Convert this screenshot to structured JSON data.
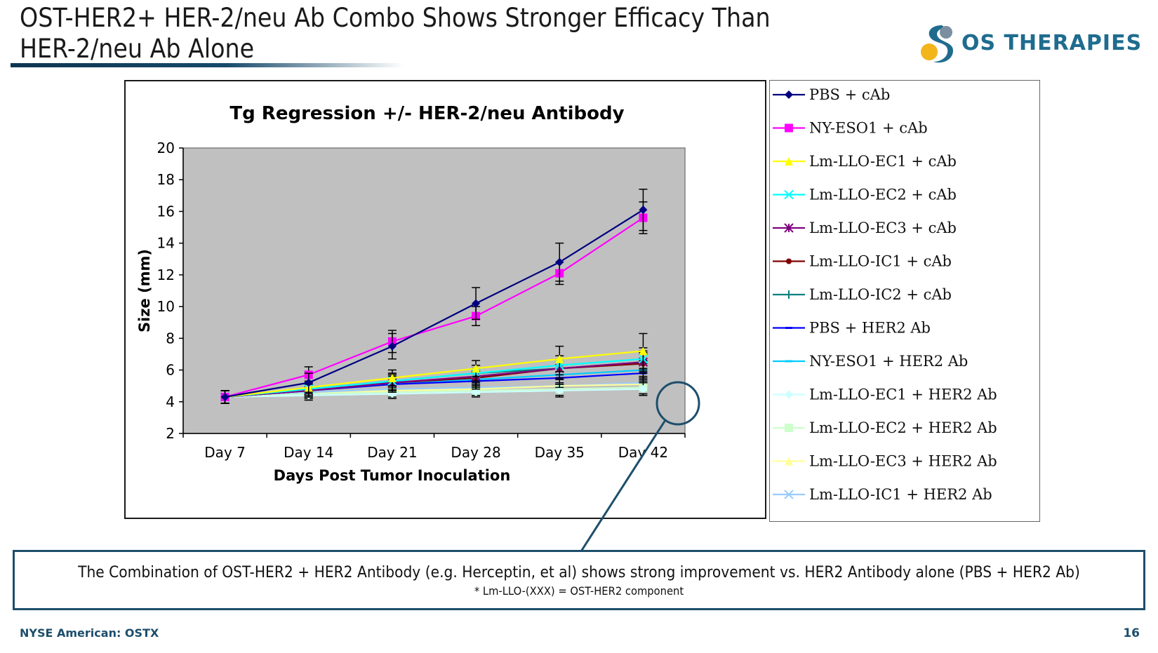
{
  "slide": {
    "title": "OST-HER2+ HER-2/neu Ab Combo Shows Stronger Efficacy Than HER-2/neu Ab Alone",
    "logo_text": "OS THERAPIES",
    "callout_main": "The Combination of OST-HER2 + HER2 Antibody (e.g. Herceptin, et al) shows strong improvement vs. HER2 Antibody alone (PBS + HER2 Ab)",
    "callout_sub": "* Lm-LLO-(XXX) = OST-HER2 component",
    "footer_left": "NYSE American: OSTX",
    "page_number": "16"
  },
  "colors": {
    "brand": "#1d4e6c",
    "plot_bg": "#c0c0c0"
  },
  "chart_data": {
    "type": "line",
    "title": "Tg Regression +/- HER-2/neu Antibody",
    "xlabel": "Days Post Tumor Inoculation",
    "ylabel": "Size (mm)",
    "ylim": [
      2,
      20
    ],
    "yticks": [
      2,
      4,
      6,
      8,
      10,
      12,
      14,
      16,
      18,
      20
    ],
    "categories": [
      "Day 7",
      "Day 14",
      "Day 21",
      "Day 28",
      "Day 35",
      "Day 42"
    ],
    "grid": false,
    "legend_position": "right",
    "series": [
      {
        "name": "PBS + cAb",
        "color": "#000080",
        "marker": "diamond",
        "values": [
          4.3,
          5.2,
          7.5,
          10.2,
          12.8,
          16.1
        ],
        "errors": [
          0.4,
          0.6,
          0.8,
          1.0,
          1.2,
          1.3
        ]
      },
      {
        "name": "NY-ESO1 + cAb",
        "color": "#ff00ff",
        "marker": "square",
        "values": [
          4.3,
          5.7,
          7.8,
          9.4,
          12.1,
          15.6
        ],
        "errors": [
          0.4,
          0.5,
          0.7,
          0.6,
          0.7,
          1.0
        ]
      },
      {
        "name": "Lm-LLO-EC1 + cAb",
        "color": "#ffff00",
        "marker": "triangle",
        "values": [
          4.3,
          4.9,
          5.5,
          6.1,
          6.7,
          7.2
        ],
        "errors": [
          0.4,
          0.4,
          0.5,
          0.5,
          0.8,
          1.1
        ]
      },
      {
        "name": "Lm-LLO-EC2 + cAb",
        "color": "#00ffff",
        "marker": "x",
        "values": [
          4.3,
          4.8,
          5.3,
          5.8,
          6.3,
          6.7
        ],
        "errors": [
          0.4,
          0.4,
          0.5,
          0.5,
          0.6,
          0.7
        ]
      },
      {
        "name": "Lm-LLO-EC3 + cAb",
        "color": "#800080",
        "marker": "star",
        "values": [
          4.3,
          4.7,
          5.2,
          5.6,
          6.1,
          6.5
        ],
        "errors": [
          0.4,
          0.4,
          0.5,
          0.5,
          0.6,
          0.7
        ]
      },
      {
        "name": "Lm-LLO-IC1 + cAb",
        "color": "#800000",
        "marker": "circle",
        "values": [
          4.3,
          4.7,
          5.2,
          5.5,
          6.1,
          6.4
        ],
        "errors": [
          0.4,
          0.4,
          0.5,
          0.5,
          0.6,
          0.6
        ]
      },
      {
        "name": "Lm-LLO-IC2 + cAb",
        "color": "#008080",
        "marker": "plus",
        "values": [
          4.3,
          4.8,
          5.3,
          5.8,
          6.1,
          6.5
        ],
        "errors": [
          0.4,
          0.4,
          0.5,
          0.5,
          0.6,
          0.6
        ]
      },
      {
        "name": "PBS + HER2 Ab",
        "color": "#0000ff",
        "marker": "dash",
        "values": [
          4.3,
          4.7,
          5.1,
          5.3,
          5.5,
          5.8
        ],
        "errors": [
          0.4,
          0.4,
          0.5,
          0.5,
          0.6,
          0.6
        ]
      },
      {
        "name": "NY-ESO1 + HER2 Ab",
        "color": "#00ccff",
        "marker": "dash",
        "values": [
          4.3,
          4.8,
          5.2,
          5.4,
          5.7,
          6.0
        ],
        "errors": [
          0.4,
          0.4,
          0.5,
          0.5,
          0.6,
          0.6
        ]
      },
      {
        "name": "Lm-LLO-EC1 + HER2 Ab",
        "color": "#ccffff",
        "marker": "diamond",
        "values": [
          4.3,
          4.4,
          4.5,
          4.6,
          4.7,
          4.8
        ],
        "errors": [
          0.4,
          0.3,
          0.3,
          0.3,
          0.4,
          0.4
        ]
      },
      {
        "name": "Lm-LLO-EC2 + HER2 Ab",
        "color": "#ccffcc",
        "marker": "square",
        "values": [
          4.3,
          4.5,
          4.6,
          4.7,
          4.8,
          4.9
        ],
        "errors": [
          0.4,
          0.3,
          0.3,
          0.3,
          0.4,
          0.4
        ]
      },
      {
        "name": "Lm-LLO-EC3 + HER2 Ab",
        "color": "#ffff99",
        "marker": "triangle",
        "values": [
          4.3,
          4.5,
          4.7,
          4.8,
          5.0,
          5.1
        ],
        "errors": [
          0.4,
          0.3,
          0.3,
          0.4,
          0.4,
          0.4
        ]
      },
      {
        "name": "Lm-LLO-IC1 + HER2 Ab",
        "color": "#99ccff",
        "marker": "x",
        "values": [
          4.3,
          4.6,
          4.8,
          4.9,
          5.0,
          5.2
        ],
        "errors": [
          0.4,
          0.3,
          0.4,
          0.4,
          0.4,
          0.4
        ]
      }
    ]
  }
}
